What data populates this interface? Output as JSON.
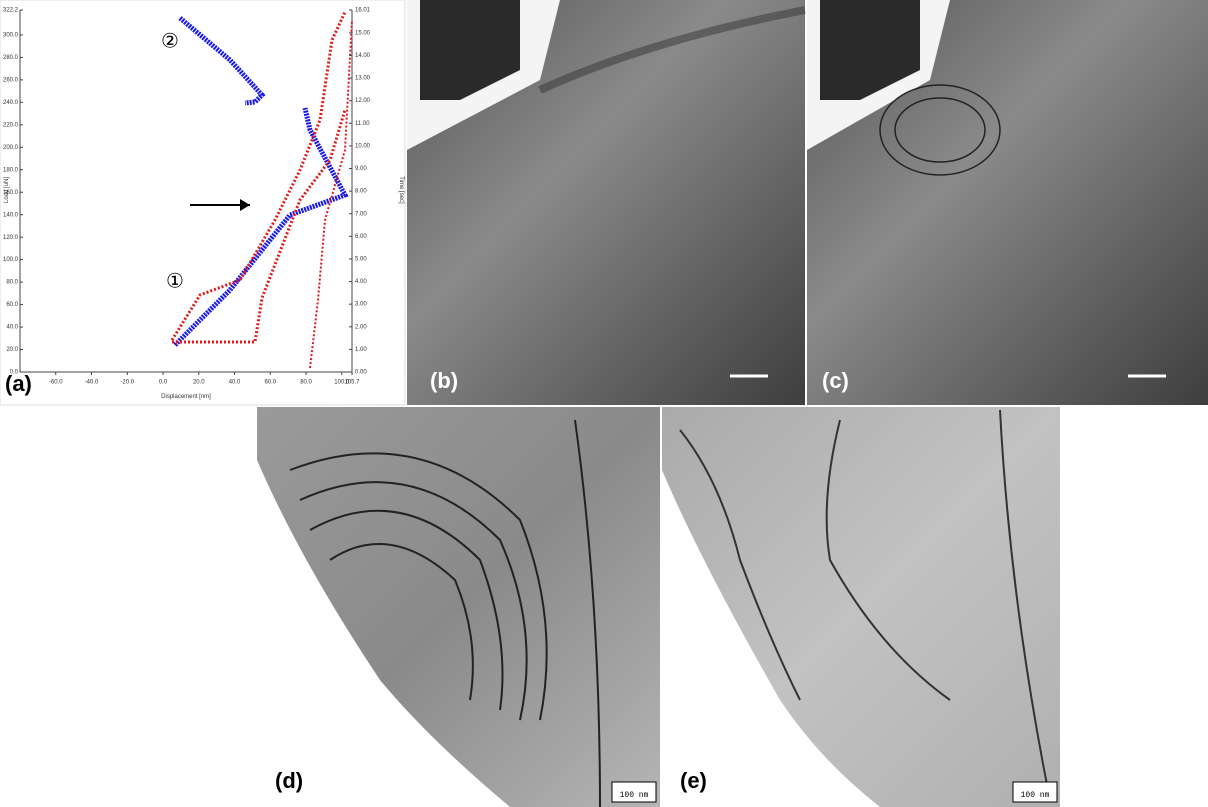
{
  "panels": [
    {
      "label": "(a)",
      "y_axis_title": "Load [uN]",
      "x_axis_title": "Displacement [nm]",
      "y2_axis_title": "Time [sec]",
      "yticks": [
        "0.0",
        "20.0",
        "40.0",
        "60.0",
        "80.0",
        "100.0",
        "120.0",
        "140.0",
        "160.0",
        "180.0",
        "200.0",
        "220.0",
        "240.0",
        "260.0",
        "280.0",
        "300.0",
        "322.2"
      ],
      "xticks": [
        "-60.0",
        "-40.0",
        "-20.0",
        "0.0",
        "20.0",
        "40.0",
        "60.0",
        "80.0",
        "100.0",
        "105.7"
      ],
      "y2ticks": [
        "0.00",
        "1.00",
        "2.00",
        "3.00",
        "4.00",
        "5.00",
        "6.00",
        "7.00",
        "8.00",
        "9.00",
        "10.00",
        "11.00",
        "12.00",
        "13.00",
        "14.00",
        "15.00",
        "16.01"
      ],
      "markers": [
        "②",
        "①"
      ]
    },
    {
      "label": "(b)"
    },
    {
      "label": "(c)"
    },
    {
      "label": "(d)",
      "scale_bar": "100 nm"
    },
    {
      "label": "(e)",
      "scale_bar": "100 nm"
    }
  ]
}
